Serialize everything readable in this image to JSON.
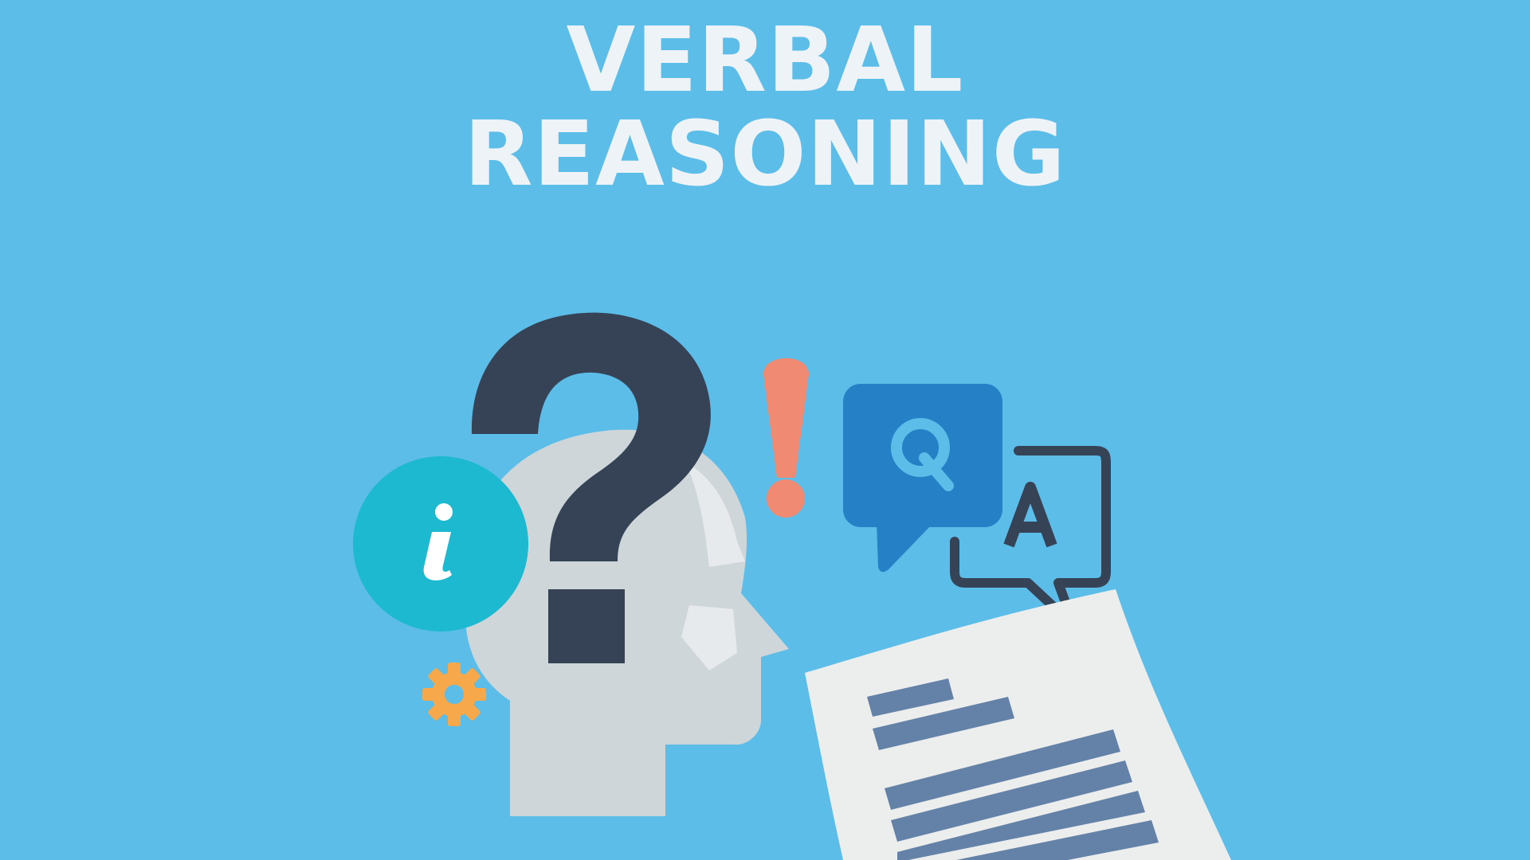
{
  "title": {
    "line1": "VERBAL",
    "line2": "REASONING"
  },
  "illustration": {
    "info_glyph": "i",
    "question_glyph": "?",
    "exclamation_glyph": "!",
    "q_bubble_letter": "Q",
    "a_bubble_letter": "A",
    "icons": [
      "head-profile-icon",
      "question-mark-icon",
      "info-icon",
      "exclamation-icon",
      "gear-icon",
      "q-speech-bubble-icon",
      "a-speech-bubble-icon",
      "document-icon"
    ]
  },
  "colors": {
    "background": "#5cbde9",
    "title": "#eef3f7",
    "head": "#cfd6da",
    "question_mark": "#364256",
    "info_circle": "#1cb9d0",
    "exclamation": "#f08a72",
    "gear": "#f6a84b",
    "q_bubble": "#2680c6",
    "q_letter": "#5cbde9",
    "a_bubble_stroke": "#364256",
    "document": "#eceeed",
    "document_lines": "#6481a8"
  }
}
